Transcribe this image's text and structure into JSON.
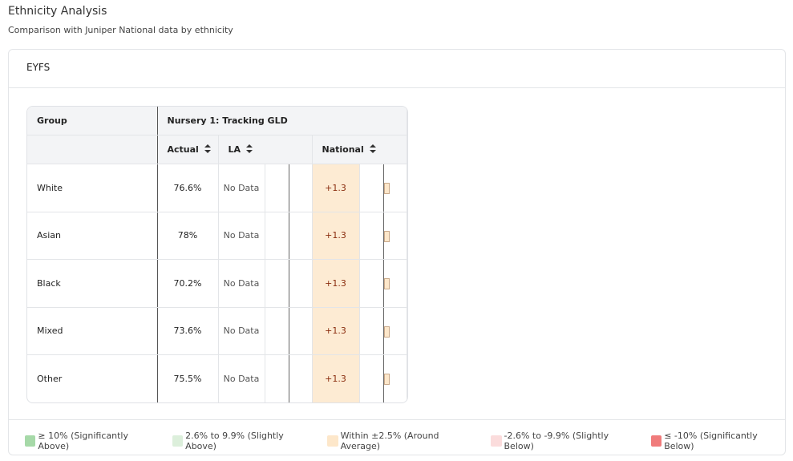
{
  "header": {
    "title": "Ethnicity Analysis",
    "subtitle": "Comparison with Juniper National data by ethnicity"
  },
  "card": {
    "title": "EYFS"
  },
  "table": {
    "group_header": "Group",
    "measure_header": "Nursery 1: Tracking GLD",
    "columns": [
      "Actual",
      "LA",
      "National"
    ],
    "rows": [
      [
        "White",
        "76.6%",
        "No Data",
        "+1.3"
      ],
      [
        "Asian",
        "78%",
        "No Data",
        "+1.3"
      ],
      [
        "Black",
        "70.2%",
        "No Data",
        "+1.3"
      ],
      [
        "Mixed",
        "73.6%",
        "No Data",
        "+1.3"
      ],
      [
        "Other",
        "75.5%",
        "No Data",
        "+1.3"
      ]
    ]
  },
  "legend": [
    {
      "label": "≥ 10% (Significantly Above)",
      "color": "#a6d9a8"
    },
    {
      "label": "2.6% to 9.9% (Slightly Above)",
      "color": "#dcefdb"
    },
    {
      "label": "Within ±2.5% (Around Average)",
      "color": "#fde7ca"
    },
    {
      "label": "-2.6% to -9.9% (Slightly Below)",
      "color": "#fbdcdc"
    },
    {
      "label": "≤ -10% (Significantly Below)",
      "color": "#f07b7b"
    }
  ]
}
